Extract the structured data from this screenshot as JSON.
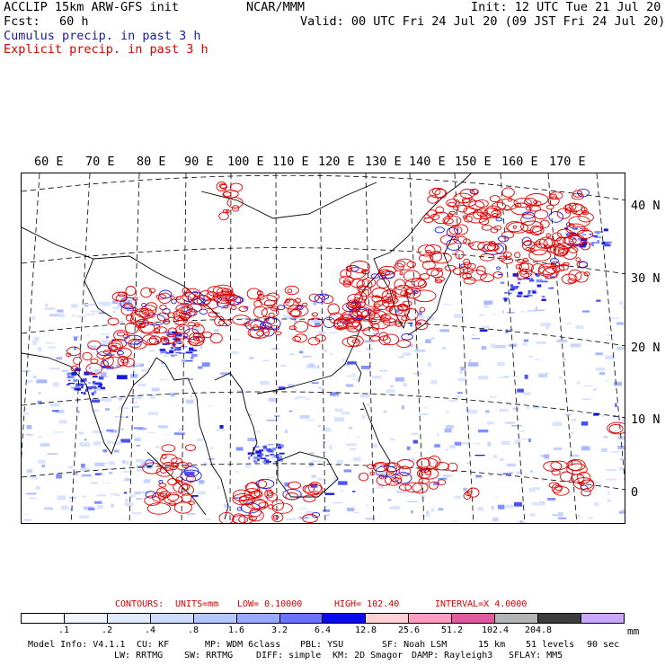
{
  "header": {
    "title": "ACCLIP 15km ARW-GFS init",
    "center": "NCAR/MMM",
    "init": "Init: 12 UTC Tue 21 Jul 20",
    "fcst_label": "Fcst:",
    "fcst_value": "60 h",
    "valid": "Valid: 00 UTC Fri 24 Jul 20 (09 JST Fri 24 Jul 20)",
    "legend_cumulus": "Cumulus precip. in past 3 h",
    "legend_explicit": "Explicit precip. in past 3 h"
  },
  "colors": {
    "cumulus": "#1a1aa8",
    "explicit": "#e00000",
    "coast": "#000000"
  },
  "map": {
    "lon_labels": [
      "60 E",
      "70 E",
      "80 E",
      "90 E",
      "100 E",
      "110 E",
      "120 E",
      "130 E",
      "140 E",
      "150 E",
      "160 E",
      "170 E"
    ],
    "lat_labels": [
      "40 N",
      "30 N",
      "20 N",
      "10 N",
      "0"
    ]
  },
  "contours": {
    "label": "CONTOURS:",
    "units": "UNITS=mm",
    "low": "LOW= 0.10000",
    "high": "HIGH= 102.40",
    "interval": "INTERVAL=X 4.0000"
  },
  "colorbar": {
    "labels": [
      ".1",
      ".2",
      ".4",
      ".8",
      "1.6",
      "3.2",
      "6.4",
      "12.8",
      "25.6",
      "51.2",
      "102.4",
      "204.8"
    ],
    "unit": "mm",
    "colors": [
      "#ffffff",
      "#f0f5ff",
      "#e0ebff",
      "#cddcff",
      "#b4c8ff",
      "#9aa8ff",
      "#6a72ff",
      "#0a0aee",
      "#ffd0d4",
      "#ff9ec0",
      "#e05aa0",
      "#b4b4b4",
      "#3c3c3c",
      "#caa8ff"
    ]
  },
  "model_info": {
    "line1": {
      "info": "Model Info: V4.1.1",
      "cu": "CU: KF",
      "mp": "MP: WDM 6class",
      "pbl": "PBL: YSU",
      "sf": "SF: Noah LSM",
      "res": "15 km",
      "levels": "51 levels",
      "dt": "90 sec"
    },
    "line2": {
      "lw": "LW: RRTMG",
      "sw": "SW: RRTMG",
      "diff": "DIFF: simple",
      "km": "KM: 2D Smagor",
      "damp": "DAMP: Rayleigh3",
      "sflay": "SFLAY: MM5"
    }
  }
}
